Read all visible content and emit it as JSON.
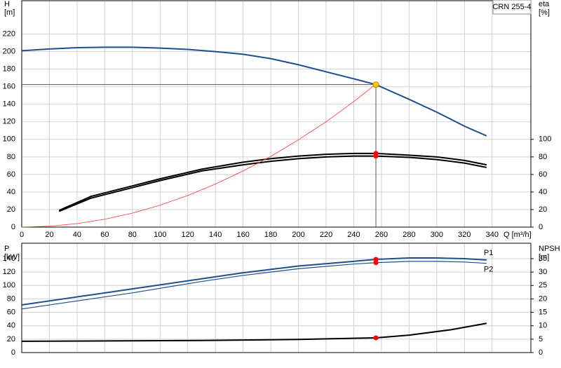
{
  "chart_data": [
    {
      "type": "line",
      "label": "CRN 255-4",
      "ylabel": [
        "H",
        "[m]"
      ],
      "y2label": [
        "eta",
        "[%]"
      ],
      "xlabel": "Q [m³/h]",
      "xlim": [
        0,
        368
      ],
      "xticks": [
        0,
        20,
        40,
        60,
        80,
        100,
        120,
        140,
        160,
        180,
        200,
        220,
        240,
        260,
        280,
        300,
        320,
        340
      ],
      "ylim": [
        0,
        258
      ],
      "yticks": [
        0,
        20,
        40,
        60,
        80,
        100,
        120,
        140,
        160,
        180,
        200,
        220
      ],
      "y2lim": [
        0,
        258
      ],
      "y2ticks": [
        0,
        20,
        40,
        60,
        80,
        100
      ],
      "grid": true,
      "duty_point": {
        "x": 256,
        "y": 162.4
      },
      "series": [
        {
          "color": "#1f4e8c",
          "width": 2,
          "x": [
            0,
            20,
            40,
            60,
            80,
            100,
            120,
            140,
            160,
            180,
            200,
            220,
            240,
            256,
            280,
            300,
            320,
            336
          ],
          "values": [
            201,
            203,
            204.5,
            205,
            205,
            204,
            202.5,
            200,
            197,
            192,
            185,
            177,
            169,
            162.4,
            145.6,
            131,
            115,
            104
          ]
        },
        {
          "color": "#000000",
          "width": 2,
          "axis": "y2",
          "x": [
            27,
            50,
            80,
            100,
            130,
            160,
            180,
            200,
            220,
            240,
            256,
            280,
            300,
            320,
            336
          ],
          "values": [
            19,
            35,
            47,
            55,
            66,
            74,
            78,
            81,
            83,
            84,
            84,
            82,
            80,
            76,
            71
          ]
        },
        {
          "color": "#000000",
          "width": 2,
          "axis": "y2",
          "x": [
            27,
            50,
            80,
            100,
            130,
            160,
            180,
            200,
            220,
            240,
            256,
            280,
            300,
            320,
            336
          ],
          "values": [
            18,
            33,
            45,
            53,
            64,
            71,
            75,
            78,
            80,
            81,
            81,
            79.5,
            77,
            73,
            68
          ]
        },
        {
          "color": "#ff3333",
          "width": 0.8,
          "x": [
            0,
            20,
            40,
            60,
            80,
            100,
            120,
            140,
            160,
            180,
            200,
            220,
            240,
            256
          ],
          "values": [
            0,
            1,
            4,
            9,
            16,
            25,
            36,
            49,
            64,
            80.6,
            99.5,
            120,
            143,
            163
          ]
        }
      ]
    },
    {
      "type": "line",
      "ylabel": [
        "P",
        "[kW]"
      ],
      "y2label": [
        "NPSH",
        "[m]"
      ],
      "xlim": [
        0,
        368
      ],
      "ylim": [
        0,
        163
      ],
      "yticks": [
        0,
        20,
        40,
        60,
        80,
        100,
        120,
        140
      ],
      "y2lim": [
        0,
        40.75
      ],
      "y2ticks": [
        0,
        5,
        10,
        15,
        20,
        25,
        30,
        35
      ],
      "grid": true,
      "series": [
        {
          "name": "P1",
          "color": "#1f4e8c",
          "width": 2,
          "x": [
            0,
            40,
            80,
            130,
            160,
            200,
            240,
            256,
            280,
            300,
            320,
            336
          ],
          "values": [
            71,
            83,
            95,
            110,
            119,
            129,
            136,
            139,
            141,
            141,
            140,
            138
          ]
        },
        {
          "name": "P2",
          "color": "#1f4e8c",
          "width": 1.2,
          "x": [
            0,
            40,
            80,
            130,
            160,
            200,
            240,
            256,
            280,
            300,
            320,
            336
          ],
          "values": [
            65,
            77,
            89,
            106,
            115,
            125,
            132,
            134,
            136,
            136,
            135,
            133
          ]
        },
        {
          "color": "#000000",
          "width": 2,
          "axis": "y2",
          "x": [
            0,
            130,
            200,
            256,
            280,
            310,
            336
          ],
          "values": [
            4.2,
            4.5,
            4.9,
            5.5,
            6.5,
            8.5,
            10.9
          ]
        }
      ]
    }
  ]
}
